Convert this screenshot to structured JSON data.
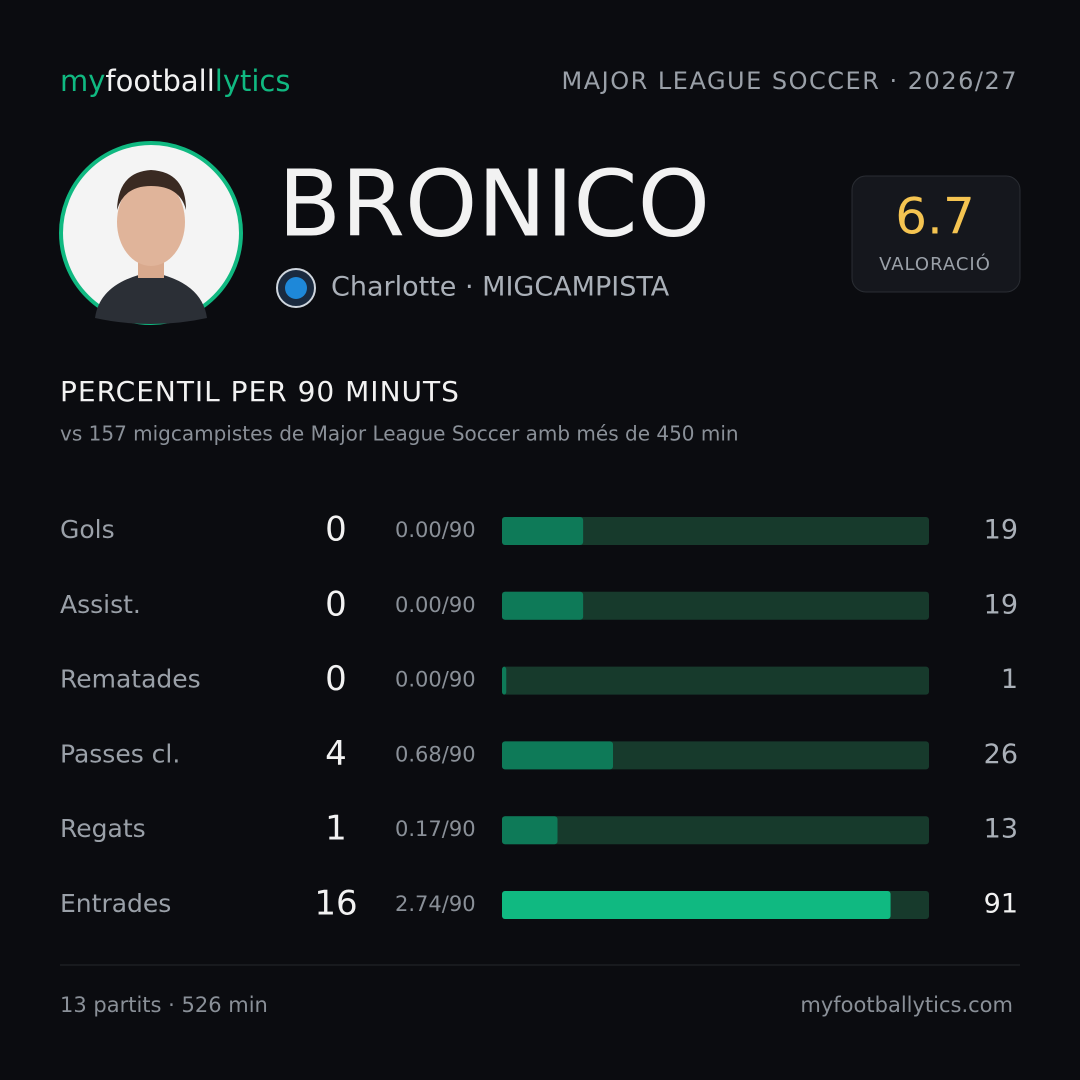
{
  "header": {
    "brand": [
      "my",
      "football",
      "lytics"
    ],
    "league": "MAJOR LEAGUE SOCCER · 2026/27"
  },
  "player": {
    "name": "BRONICO",
    "subtitle": "Charlotte · MIGCAMPISTA",
    "rating": "6.7",
    "rating_label": "VALORACIÓ"
  },
  "section": {
    "title": "PERCENTIL PER 90 MINUTS",
    "subtitle": "vs 157 migcampistes de Major League Soccer amb més de 450 min"
  },
  "stats": {
    "xlim": [
      0,
      100
    ],
    "rows": [
      {
        "label": "Gols",
        "total": 0,
        "per90": "0.00/90",
        "percentile": 19,
        "color": "#0e7a58"
      },
      {
        "label": "Assist.",
        "total": 0,
        "per90": "0.00/90",
        "percentile": 19,
        "color": "#0e7a58"
      },
      {
        "label": "Rematades",
        "total": 0,
        "per90": "0.00/90",
        "percentile": 1,
        "color": "#0e7a58"
      },
      {
        "label": "Passes cl.",
        "total": 4,
        "per90": "0.68/90",
        "percentile": 26,
        "color": "#0e7a58"
      },
      {
        "label": "Regats",
        "total": 1,
        "per90": "0.17/90",
        "percentile": 13,
        "color": "#0e7a58"
      },
      {
        "label": "Entrades",
        "total": 16,
        "per90": "2.74/90",
        "percentile": 91,
        "color": "#10b981"
      }
    ]
  },
  "footer": {
    "left": "13 partits · 526 min",
    "right": "myfootballytics.com"
  }
}
